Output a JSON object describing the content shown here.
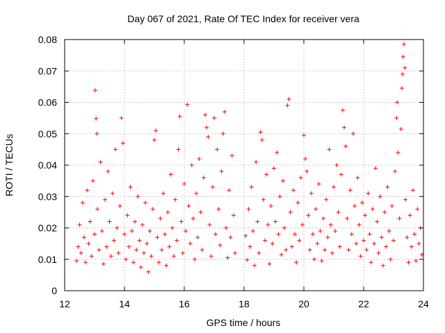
{
  "chart_data": {
    "type": "scatter",
    "title": "Day 067 of 2021, Rate Of TEC Index for receiver vera",
    "xlabel": "GPS time / hours",
    "ylabel": "ROTI / TECUs",
    "xlim": [
      12,
      24
    ],
    "ylim": [
      0,
      0.08
    ],
    "xticks": [
      12,
      14,
      16,
      18,
      20,
      22,
      24
    ],
    "yticks": [
      0,
      0.01,
      0.02,
      0.03,
      0.04,
      0.05,
      0.06,
      0.07,
      0.08
    ],
    "xtick_labels": [
      "12",
      "14",
      "16",
      "18",
      "20",
      "22",
      "24"
    ],
    "ytick_labels": [
      "0",
      "0.01",
      "0.02",
      "0.03",
      "0.04",
      "0.05",
      "0.06",
      "0.07",
      "0.08"
    ],
    "grid": true,
    "marker": "+",
    "color": "#ff0000",
    "series": [
      {
        "name": "ROTI",
        "points": [
          [
            12.4,
            0.0095
          ],
          [
            12.45,
            0.014
          ],
          [
            12.5,
            0.021
          ],
          [
            12.55,
            0.012
          ],
          [
            12.6,
            0.028
          ],
          [
            12.65,
            0.017
          ],
          [
            12.7,
            0.009
          ],
          [
            12.75,
            0.032
          ],
          [
            12.8,
            0.015
          ],
          [
            12.85,
            0.022
          ],
          [
            12.9,
            0.011
          ],
          [
            12.95,
            0.035
          ],
          [
            13.0,
            0.018
          ],
          [
            13.02,
            0.0638
          ],
          [
            13.05,
            0.0548
          ],
          [
            13.08,
            0.05
          ],
          [
            13.1,
            0.026
          ],
          [
            13.15,
            0.013
          ],
          [
            13.2,
            0.041
          ],
          [
            13.25,
            0.019
          ],
          [
            13.3,
            0.0085
          ],
          [
            13.35,
            0.029
          ],
          [
            13.4,
            0.014
          ],
          [
            13.45,
            0.038
          ],
          [
            13.5,
            0.022
          ],
          [
            13.55,
            0.011
          ],
          [
            13.6,
            0.031
          ],
          [
            13.65,
            0.016
          ],
          [
            13.7,
            0.045
          ],
          [
            13.75,
            0.02
          ],
          [
            13.8,
            0.012
          ],
          [
            13.85,
            0.027
          ],
          [
            13.9,
            0.055
          ],
          [
            13.95,
            0.047
          ],
          [
            14.0,
            0.018
          ],
          [
            14.05,
            0.01
          ],
          [
            14.1,
            0.024
          ],
          [
            14.15,
            0.014
          ],
          [
            14.2,
            0.033
          ],
          [
            14.25,
            0.019
          ],
          [
            14.3,
            0.009
          ],
          [
            14.35,
            0.022
          ],
          [
            14.4,
            0.013
          ],
          [
            14.45,
            0.03
          ],
          [
            14.5,
            0.016
          ],
          [
            14.55,
            0.0075
          ],
          [
            14.6,
            0.021
          ],
          [
            14.65,
            0.012
          ],
          [
            14.7,
            0.028
          ],
          [
            14.75,
            0.015
          ],
          [
            14.8,
            0.006
          ],
          [
            14.85,
            0.019
          ],
          [
            14.9,
            0.011
          ],
          [
            14.95,
            0.026
          ],
          [
            15.0,
            0.048
          ],
          [
            15.05,
            0.051
          ],
          [
            15.1,
            0.017
          ],
          [
            15.15,
            0.009
          ],
          [
            15.2,
            0.023
          ],
          [
            15.25,
            0.013
          ],
          [
            15.3,
            0.031
          ],
          [
            15.35,
            0.018
          ],
          [
            15.4,
            0.008
          ],
          [
            15.45,
            0.025
          ],
          [
            15.5,
            0.014
          ],
          [
            15.55,
            0.037
          ],
          [
            15.6,
            0.02
          ],
          [
            15.65,
            0.011
          ],
          [
            15.7,
            0.029
          ],
          [
            15.75,
            0.016
          ],
          [
            15.8,
            0.045
          ],
          [
            15.85,
            0.0555
          ],
          [
            15.9,
            0.022
          ],
          [
            15.95,
            0.012
          ],
          [
            16.0,
            0.034
          ],
          [
            16.05,
            0.019
          ],
          [
            16.1,
            0.0593
          ],
          [
            16.15,
            0.027
          ],
          [
            16.2,
            0.015
          ],
          [
            16.25,
            0.04
          ],
          [
            16.3,
            0.023
          ],
          [
            16.35,
            0.01
          ],
          [
            16.4,
            0.031
          ],
          [
            16.45,
            0.017
          ],
          [
            16.5,
            0.042
          ],
          [
            16.55,
            0.025
          ],
          [
            16.6,
            0.013
          ],
          [
            16.65,
            0.036
          ],
          [
            16.7,
            0.056
          ],
          [
            16.75,
            0.052
          ],
          [
            16.8,
            0.049
          ],
          [
            16.85,
            0.021
          ],
          [
            16.9,
            0.011
          ],
          [
            16.95,
            0.033
          ],
          [
            17.0,
            0.055
          ],
          [
            17.05,
            0.018
          ],
          [
            17.1,
            0.045
          ],
          [
            17.15,
            0.026
          ],
          [
            17.2,
            0.0145
          ],
          [
            17.25,
            0.038
          ],
          [
            17.3,
            0.05
          ],
          [
            17.35,
            0.057
          ],
          [
            17.4,
            0.02
          ],
          [
            17.45,
            0.0105
          ],
          [
            17.5,
            0.032
          ],
          [
            17.55,
            0.017
          ],
          [
            17.6,
            0.043
          ],
          [
            17.65,
            0.024
          ],
          [
            17.7,
            0.012
          ],
          [
            18.05,
            0.0175
          ],
          [
            18.1,
            0.0098
          ],
          [
            18.15,
            0.026
          ],
          [
            18.2,
            0.014
          ],
          [
            18.25,
            0.033
          ],
          [
            18.3,
            0.019
          ],
          [
            18.35,
            0.008
          ],
          [
            18.4,
            0.041
          ],
          [
            18.45,
            0.022
          ],
          [
            18.5,
            0.012
          ],
          [
            18.55,
            0.0505
          ],
          [
            18.6,
            0.048
          ],
          [
            18.65,
            0.029
          ],
          [
            18.7,
            0.016
          ],
          [
            18.75,
            0.037
          ],
          [
            18.8,
            0.021
          ],
          [
            18.85,
            0.0085
          ],
          [
            18.9,
            0.027
          ],
          [
            18.95,
            0.015
          ],
          [
            19.0,
            0.039
          ],
          [
            19.05,
            0.022
          ],
          [
            19.1,
            0.044
          ],
          [
            19.15,
            0.018
          ],
          [
            19.2,
            0.03
          ],
          [
            19.25,
            0.0115
          ],
          [
            19.3,
            0.035
          ],
          [
            19.35,
            0.02
          ],
          [
            19.4,
            0.013
          ],
          [
            19.45,
            0.059
          ],
          [
            19.5,
            0.061
          ],
          [
            19.55,
            0.025
          ],
          [
            19.6,
            0.014
          ],
          [
            19.65,
            0.032
          ],
          [
            19.7,
            0.018
          ],
          [
            19.75,
            0.009
          ],
          [
            19.8,
            0.028
          ],
          [
            19.85,
            0.016
          ],
          [
            19.9,
            0.036
          ],
          [
            19.95,
            0.021
          ],
          [
            20.0,
            0.0495
          ],
          [
            20.05,
            0.042
          ],
          [
            20.1,
            0.038
          ],
          [
            20.15,
            0.024
          ],
          [
            20.2,
            0.013
          ],
          [
            20.25,
            0.031
          ],
          [
            20.3,
            0.018
          ],
          [
            20.35,
            0.01
          ],
          [
            20.4,
            0.026
          ],
          [
            20.45,
            0.015
          ],
          [
            20.5,
            0.034
          ],
          [
            20.55,
            0.019
          ],
          [
            20.6,
            0.0095
          ],
          [
            20.65,
            0.023
          ],
          [
            20.7,
            0.013
          ],
          [
            20.75,
            0.029
          ],
          [
            20.8,
            0.017
          ],
          [
            20.85,
            0.045
          ],
          [
            20.9,
            0.021
          ],
          [
            20.95,
            0.012
          ],
          [
            21.0,
            0.033
          ],
          [
            21.05,
            0.019
          ],
          [
            21.1,
            0.04
          ],
          [
            21.15,
            0.025
          ],
          [
            21.2,
            0.014
          ],
          [
            21.25,
            0.037
          ],
          [
            21.3,
            0.0575
          ],
          [
            21.35,
            0.052
          ],
          [
            21.4,
            0.046
          ],
          [
            21.45,
            0.023
          ],
          [
            21.5,
            0.013
          ],
          [
            21.55,
            0.032
          ],
          [
            21.6,
            0.018
          ],
          [
            21.65,
            0.05
          ],
          [
            21.7,
            0.027
          ],
          [
            21.75,
            0.015
          ],
          [
            21.8,
            0.036
          ],
          [
            21.85,
            0.021
          ],
          [
            21.9,
            0.011
          ],
          [
            21.95,
            0.028
          ],
          [
            22.0,
            0.016
          ],
          [
            22.05,
            0.024
          ],
          [
            22.1,
            0.013
          ],
          [
            22.15,
            0.031
          ],
          [
            22.2,
            0.018
          ],
          [
            22.25,
            0.009
          ],
          [
            22.3,
            0.026
          ],
          [
            22.35,
            0.015
          ],
          [
            22.4,
            0.039
          ],
          [
            22.45,
            0.022
          ],
          [
            22.5,
            0.012
          ],
          [
            22.55,
            0.03
          ],
          [
            22.6,
            0.017
          ],
          [
            22.65,
            0.008
          ],
          [
            22.7,
            0.025
          ],
          [
            22.75,
            0.014
          ],
          [
            22.8,
            0.033
          ],
          [
            22.85,
            0.019
          ],
          [
            22.9,
            0.01
          ],
          [
            22.95,
            0.027
          ],
          [
            23.0,
            0.016
          ],
          [
            23.05,
            0.038
          ],
          [
            23.1,
            0.055
          ],
          [
            23.12,
            0.06
          ],
          [
            23.15,
            0.044
          ],
          [
            23.2,
            0.023
          ],
          [
            23.25,
            0.0515
          ],
          [
            23.28,
            0.0645
          ],
          [
            23.3,
            0.069
          ],
          [
            23.32,
            0.0745
          ],
          [
            23.35,
            0.0785
          ],
          [
            23.38,
            0.071
          ],
          [
            23.4,
            0.029
          ],
          [
            23.45,
            0.017
          ],
          [
            23.5,
            0.009
          ],
          [
            23.55,
            0.024
          ],
          [
            23.6,
            0.014
          ],
          [
            23.65,
            0.032
          ],
          [
            23.7,
            0.018
          ],
          [
            23.75,
            0.0095
          ],
          [
            23.8,
            0.026
          ],
          [
            23.85,
            0.015
          ],
          [
            23.9,
            0.02
          ],
          [
            23.95,
            0.0115
          ]
        ]
      }
    ]
  }
}
